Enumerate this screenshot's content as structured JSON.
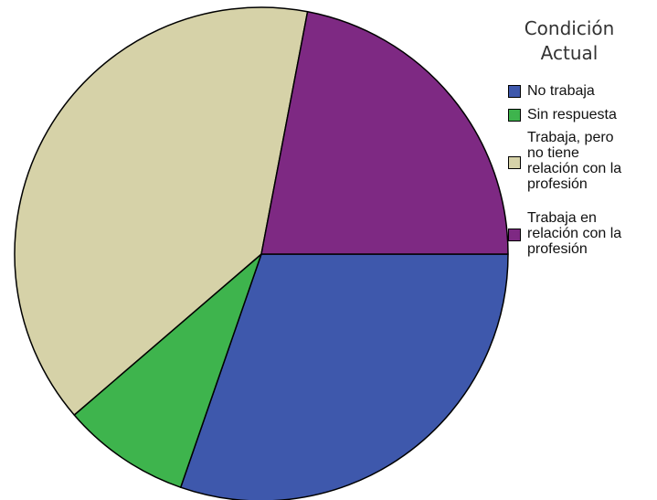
{
  "chart_data": {
    "type": "pie",
    "title": "",
    "legend_title": [
      "Condición",
      "Actual"
    ],
    "legend_position": "top-right",
    "slices": [
      {
        "label": "No trabaja",
        "value": 30.3,
        "color": "#3e58ac"
      },
      {
        "label": "Sin respuesta",
        "value": 8.4,
        "color": "#3eb44d"
      },
      {
        "label": "Trabaja, pero no tiene relación con la profesión",
        "value": 39.3,
        "color": "#d6d2a8"
      },
      {
        "label": "Trabaja en relación con la profesión",
        "value": 22.0,
        "color": "#7e2983"
      }
    ],
    "legend_lines": [
      [
        "No trabaja"
      ],
      [
        "Sin respuesta"
      ],
      [
        "Trabaja, pero",
        "no tiene",
        "relación con la",
        "profesión"
      ],
      [
        "Trabaja en",
        "relación con la",
        "profesión"
      ]
    ]
  }
}
